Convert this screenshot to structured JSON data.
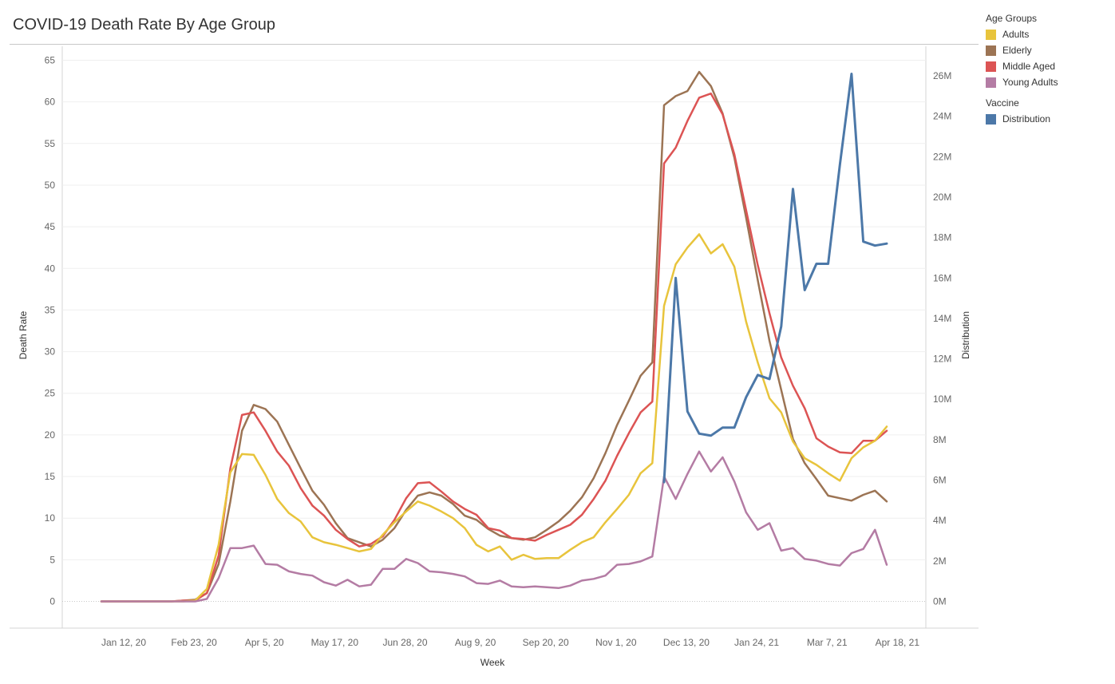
{
  "title": "COVID-19 Death Rate By Age Group",
  "legend": {
    "age_groups_title": "Age Groups",
    "vaccine_title": "Vaccine",
    "age_items": [
      {
        "label": "Adults",
        "color": "#E8C43C"
      },
      {
        "label": "Elderly",
        "color": "#9C7454"
      },
      {
        "label": "Middle Aged",
        "color": "#DC5454"
      },
      {
        "label": "Young Adults",
        "color": "#B47CA4"
      }
    ],
    "vaccine_items": [
      {
        "label": "Distribution",
        "color": "#4C78A8"
      }
    ]
  },
  "chart_data": {
    "type": "line",
    "title": "COVID-19 Death Rate By Age Group",
    "xlabel": "Week",
    "ylabel": "Death Rate",
    "y2label": "Distribution",
    "x_tick_labels": [
      "Jan 12, 20",
      "Feb 23, 20",
      "Apr 5, 20",
      "May 17, 20",
      "Jun 28, 20",
      "Aug 9, 20",
      "Sep 20, 20",
      "Nov 1, 20",
      "Dec 13, 20",
      "Jan 24, 21",
      "Mar 7, 21",
      "Apr 18, 21"
    ],
    "y_ticks": [
      0,
      5,
      10,
      15,
      20,
      25,
      30,
      35,
      40,
      45,
      50,
      55,
      60,
      65
    ],
    "y2_ticks": [
      0,
      2,
      4,
      6,
      8,
      10,
      12,
      14,
      16,
      18,
      20,
      22,
      24,
      26
    ],
    "y2_tick_labels": [
      "0M",
      "2M",
      "4M",
      "6M",
      "8M",
      "10M",
      "12M",
      "14M",
      "16M",
      "18M",
      "20M",
      "22M",
      "24M",
      "26M"
    ],
    "ylim": [
      0,
      67
    ],
    "y2lim": [
      0,
      27
    ],
    "grid": true,
    "legend_position": "right",
    "x_start_date": "2020-01-12",
    "x_end_date": "2021-04-25",
    "series": [
      {
        "name": "Elderly",
        "axis": "left",
        "color": "#9C7454",
        "dates": [
          "2020-01-12",
          "2020-01-19",
          "2020-01-26",
          "2020-02-02",
          "2020-02-09",
          "2020-02-16",
          "2020-02-23",
          "2020-03-01",
          "2020-03-08",
          "2020-03-15",
          "2020-03-22",
          "2020-03-29",
          "2020-04-05",
          "2020-04-12",
          "2020-04-19",
          "2020-04-26",
          "2020-05-03",
          "2020-05-10",
          "2020-05-17",
          "2020-05-24",
          "2020-05-31",
          "2020-06-07",
          "2020-06-14",
          "2020-06-21",
          "2020-06-28",
          "2020-07-05",
          "2020-07-12",
          "2020-07-19",
          "2020-07-26",
          "2020-08-02",
          "2020-08-09",
          "2020-08-16",
          "2020-08-23",
          "2020-08-30",
          "2020-09-06",
          "2020-09-13",
          "2020-09-20",
          "2020-09-27",
          "2020-10-04",
          "2020-10-11",
          "2020-10-18",
          "2020-10-25",
          "2020-11-01",
          "2020-11-08",
          "2020-11-15",
          "2020-11-22",
          "2020-11-29",
          "2020-12-06",
          "2020-12-13",
          "2020-12-20",
          "2020-12-27",
          "2021-01-03",
          "2021-01-10",
          "2021-01-17",
          "2021-01-24",
          "2021-01-31",
          "2021-02-07",
          "2021-02-14",
          "2021-02-21",
          "2021-02-28",
          "2021-03-07",
          "2021-03-14",
          "2021-03-21",
          "2021-03-28",
          "2021-04-04",
          "2021-04-11",
          "2021-04-18",
          "2021-04-25"
        ],
        "values": [
          0,
          0,
          0,
          0,
          0,
          0,
          0,
          0.1,
          0.2,
          1.0,
          4.5,
          12,
          20.5,
          23.6,
          23.1,
          21.6,
          18.8,
          16,
          13.3,
          11.6,
          9.4,
          7.6,
          7.1,
          6.6,
          7.4,
          8.8,
          11,
          12.7,
          13.1,
          12.7,
          11.7,
          10.3,
          9.8,
          8.7,
          7.9,
          7.6,
          7.4,
          7.7,
          8.6,
          9.6,
          10.9,
          12.5,
          14.8,
          17.8,
          21.2,
          24.1,
          27.1,
          28.7,
          59.6,
          60.7,
          61.3,
          63.6,
          61.9,
          58.6,
          53.3,
          46.1,
          38.6,
          31.3,
          25.4,
          19.5,
          16.6,
          14.7,
          12.7,
          12.4,
          12.1,
          12.8,
          13.3,
          12
        ]
      },
      {
        "name": "Middle Aged",
        "axis": "left",
        "color": "#DC5454",
        "dates": [
          "2020-01-12",
          "2020-01-19",
          "2020-01-26",
          "2020-02-02",
          "2020-02-09",
          "2020-02-16",
          "2020-02-23",
          "2020-03-01",
          "2020-03-08",
          "2020-03-15",
          "2020-03-22",
          "2020-03-29",
          "2020-04-05",
          "2020-04-12",
          "2020-04-19",
          "2020-04-26",
          "2020-05-03",
          "2020-05-10",
          "2020-05-17",
          "2020-05-24",
          "2020-05-31",
          "2020-06-07",
          "2020-06-14",
          "2020-06-21",
          "2020-06-28",
          "2020-07-05",
          "2020-07-12",
          "2020-07-19",
          "2020-07-26",
          "2020-08-02",
          "2020-08-09",
          "2020-08-16",
          "2020-08-23",
          "2020-08-30",
          "2020-09-06",
          "2020-09-13",
          "2020-09-20",
          "2020-09-27",
          "2020-10-04",
          "2020-10-11",
          "2020-10-18",
          "2020-10-25",
          "2020-11-01",
          "2020-11-08",
          "2020-11-15",
          "2020-11-22",
          "2020-11-29",
          "2020-12-06",
          "2020-12-13",
          "2020-12-20",
          "2020-12-27",
          "2021-01-03",
          "2021-01-10",
          "2021-01-17",
          "2021-01-24",
          "2021-01-31",
          "2021-02-07",
          "2021-02-14",
          "2021-02-21",
          "2021-02-28",
          "2021-03-07",
          "2021-03-14",
          "2021-03-21",
          "2021-03-28",
          "2021-04-04",
          "2021-04-11",
          "2021-04-18",
          "2021-04-25"
        ],
        "values": [
          0,
          0,
          0,
          0,
          0,
          0,
          0,
          0.1,
          0.1,
          1.0,
          5.5,
          16,
          22.4,
          22.7,
          20.5,
          18,
          16.3,
          13.6,
          11.5,
          10.3,
          8.6,
          7.5,
          6.6,
          6.9,
          7.8,
          9.8,
          12.4,
          14.2,
          14.3,
          13.2,
          12,
          11.1,
          10.4,
          8.8,
          8.5,
          7.6,
          7.5,
          7.3,
          8,
          8.6,
          9.2,
          10.4,
          12.3,
          14.5,
          17.5,
          20.2,
          22.7,
          24,
          52.6,
          54.5,
          57.7,
          60.5,
          61,
          58.5,
          53.7,
          47,
          40.4,
          34.6,
          29.3,
          25.9,
          23.2,
          19.6,
          18.6,
          17.9,
          17.8,
          19.3,
          19.3,
          20.5
        ]
      },
      {
        "name": "Adults",
        "axis": "left",
        "color": "#E8C43C",
        "dates": [
          "2020-01-12",
          "2020-01-19",
          "2020-01-26",
          "2020-02-02",
          "2020-02-09",
          "2020-02-16",
          "2020-02-23",
          "2020-03-01",
          "2020-03-08",
          "2020-03-15",
          "2020-03-22",
          "2020-03-29",
          "2020-04-05",
          "2020-04-12",
          "2020-04-19",
          "2020-04-26",
          "2020-05-03",
          "2020-05-10",
          "2020-05-17",
          "2020-05-24",
          "2020-05-31",
          "2020-06-07",
          "2020-06-14",
          "2020-06-21",
          "2020-06-28",
          "2020-07-05",
          "2020-07-12",
          "2020-07-19",
          "2020-07-26",
          "2020-08-02",
          "2020-08-09",
          "2020-08-16",
          "2020-08-23",
          "2020-08-30",
          "2020-09-06",
          "2020-09-13",
          "2020-09-20",
          "2020-09-27",
          "2020-10-04",
          "2020-10-11",
          "2020-10-18",
          "2020-10-25",
          "2020-11-01",
          "2020-11-08",
          "2020-11-15",
          "2020-11-22",
          "2020-11-29",
          "2020-12-06",
          "2020-12-13",
          "2020-12-20",
          "2020-12-27",
          "2021-01-03",
          "2021-01-10",
          "2021-01-17",
          "2021-01-24",
          "2021-01-31",
          "2021-02-07",
          "2021-02-14",
          "2021-02-21",
          "2021-02-28",
          "2021-03-07",
          "2021-03-14",
          "2021-03-21",
          "2021-03-28",
          "2021-04-04",
          "2021-04-11",
          "2021-04-18",
          "2021-04-25"
        ],
        "values": [
          0,
          0,
          0,
          0,
          0,
          0,
          0,
          0,
          0.1,
          1.5,
          6.8,
          15.5,
          17.7,
          17.6,
          15.2,
          12.3,
          10.6,
          9.6,
          7.7,
          7.1,
          6.8,
          6.4,
          6,
          6.3,
          8,
          9.5,
          10.8,
          12,
          11.5,
          10.8,
          10,
          8.8,
          6.8,
          6,
          6.6,
          5,
          5.6,
          5.1,
          5.2,
          5.2,
          6.2,
          7.1,
          7.7,
          9.5,
          11.1,
          12.8,
          15.4,
          16.6,
          35.5,
          40.5,
          42.5,
          44.1,
          41.8,
          42.9,
          40.2,
          33.6,
          28.7,
          24.4,
          22.7,
          19.2,
          17.2,
          16.4,
          15.4,
          14.5,
          17.2,
          18.5,
          19.3,
          21
        ]
      },
      {
        "name": "Young Adults",
        "axis": "left",
        "color": "#B47CA4",
        "dates": [
          "2020-01-12",
          "2020-01-19",
          "2020-01-26",
          "2020-02-02",
          "2020-02-09",
          "2020-02-16",
          "2020-02-23",
          "2020-03-01",
          "2020-03-08",
          "2020-03-15",
          "2020-03-22",
          "2020-03-29",
          "2020-04-05",
          "2020-04-12",
          "2020-04-19",
          "2020-04-26",
          "2020-05-03",
          "2020-05-10",
          "2020-05-17",
          "2020-05-24",
          "2020-05-31",
          "2020-06-07",
          "2020-06-14",
          "2020-06-21",
          "2020-06-28",
          "2020-07-05",
          "2020-07-12",
          "2020-07-19",
          "2020-07-26",
          "2020-08-02",
          "2020-08-09",
          "2020-08-16",
          "2020-08-23",
          "2020-08-30",
          "2020-09-06",
          "2020-09-13",
          "2020-09-20",
          "2020-09-27",
          "2020-10-04",
          "2020-10-11",
          "2020-10-18",
          "2020-10-25",
          "2020-11-01",
          "2020-11-08",
          "2020-11-15",
          "2020-11-22",
          "2020-11-29",
          "2020-12-06",
          "2020-12-13",
          "2020-12-20",
          "2020-12-27",
          "2021-01-03",
          "2021-01-10",
          "2021-01-17",
          "2021-01-24",
          "2021-01-31",
          "2021-02-07",
          "2021-02-14",
          "2021-02-21",
          "2021-02-28",
          "2021-03-07",
          "2021-03-14",
          "2021-03-21",
          "2021-03-28",
          "2021-04-04",
          "2021-04-11",
          "2021-04-18",
          "2021-04-25"
        ],
        "values": [
          0,
          0,
          0,
          0,
          0,
          0,
          0,
          0,
          0,
          0.3,
          2.8,
          6.4,
          6.4,
          6.7,
          4.5,
          4.4,
          3.6,
          3.3,
          3.1,
          2.3,
          1.9,
          2.6,
          1.8,
          2,
          3.9,
          3.9,
          5.1,
          4.6,
          3.6,
          3.5,
          3.3,
          3,
          2.2,
          2.1,
          2.5,
          1.8,
          1.7,
          1.8,
          1.7,
          1.6,
          1.9,
          2.5,
          2.7,
          3.1,
          4.4,
          4.5,
          4.8,
          5.4,
          15,
          12.3,
          15.3,
          18,
          15.6,
          17.3,
          14.4,
          10.7,
          8.6,
          9.4,
          6.1,
          6.4,
          5.1,
          4.9,
          4.5,
          4.3,
          5.8,
          6.3,
          8.6,
          4.4
        ]
      },
      {
        "name": "Distribution",
        "axis": "right",
        "color": "#4C78A8",
        "dates": [
          "2020-12-13",
          "2020-12-20",
          "2020-12-27",
          "2021-01-03",
          "2021-01-10",
          "2021-01-17",
          "2021-01-24",
          "2021-01-31",
          "2021-02-07",
          "2021-02-14",
          "2021-02-21",
          "2021-02-28",
          "2021-03-07",
          "2021-03-14",
          "2021-03-21",
          "2021-03-28",
          "2021-04-04",
          "2021-04-11",
          "2021-04-18",
          "2021-04-25"
        ],
        "values": [
          5.9,
          16,
          9.4,
          8.3,
          8.2,
          8.6,
          8.6,
          10.1,
          11.2,
          11.0,
          13.6,
          20.4,
          15.4,
          16.7,
          16.7,
          21.6,
          26.1,
          17.8,
          17.6,
          17.7
        ]
      }
    ]
  }
}
